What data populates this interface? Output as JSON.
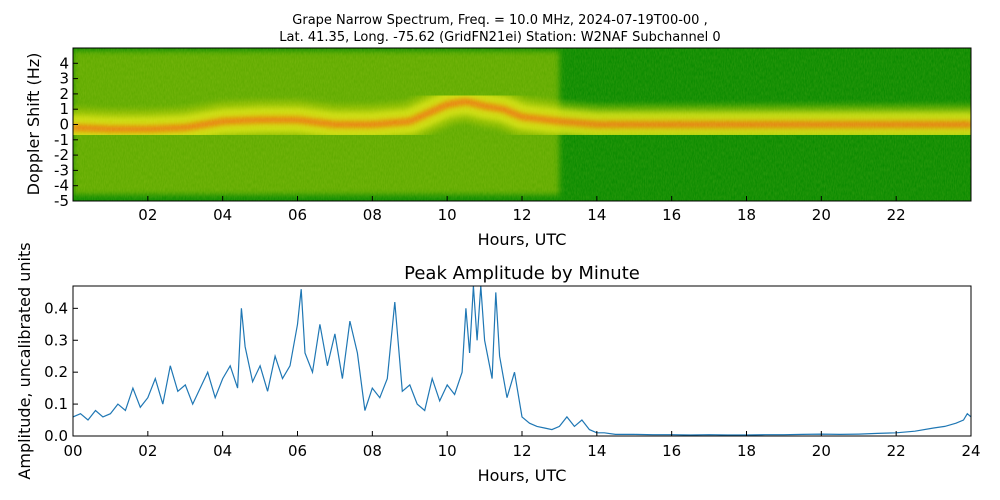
{
  "figure": {
    "title_line1": "Grape Narrow Spectrum, Freq. = 10.0 MHz, 2024-07-19T00-00 ,",
    "title_line2": "Lat.  41.35, Long. -75.62 (GridFN21ei) Station: W2NAF Subchannel 0"
  },
  "chart_data": [
    {
      "type": "heatmap",
      "title": "",
      "xlabel": "Hours, UTC",
      "ylabel": "Doppler Shift (Hz)",
      "xlim": [
        0,
        24
      ],
      "ylim": [
        -5,
        5
      ],
      "x_ticks": [
        2,
        4,
        6,
        8,
        10,
        12,
        14,
        16,
        18,
        20,
        22
      ],
      "x_tick_labels": [
        "02",
        "04",
        "06",
        "08",
        "10",
        "12",
        "14",
        "16",
        "18",
        "20",
        "22"
      ],
      "y_ticks": [
        -5,
        -4,
        -3,
        -2,
        -1,
        0,
        1,
        2,
        3,
        4
      ],
      "y_tick_labels": [
        "-5",
        "-4",
        "-3",
        "-2",
        "-1",
        "0",
        "1",
        "2",
        "3",
        "4"
      ],
      "colors": {
        "background": "#0a8a00",
        "mid": "#c8d400",
        "high": "#e8ee20",
        "peak": "#ff3a10"
      },
      "ridge": {
        "hours": [
          0,
          1,
          2,
          3,
          4,
          5,
          6,
          7,
          8,
          9,
          10,
          10.5,
          11,
          11.5,
          12,
          13,
          14,
          15,
          16,
          17,
          18,
          19,
          20,
          21,
          22,
          23,
          24
        ],
        "doppler_hz": [
          -0.2,
          -0.3,
          -0.3,
          -0.2,
          0.2,
          0.3,
          0.3,
          0.0,
          0.0,
          0.2,
          1.3,
          1.5,
          1.2,
          1.0,
          0.5,
          0.2,
          0.0,
          0.0,
          0.0,
          0.0,
          0.0,
          0.0,
          0.0,
          0.0,
          0.0,
          0.0,
          0.0
        ]
      }
    },
    {
      "type": "line",
      "title": "Peak Amplitude by Minute",
      "xlabel": "Hours, UTC",
      "ylabel": "Amplitude, uncalibrated units",
      "xlim": [
        0,
        24
      ],
      "ylim": [
        0,
        0.47
      ],
      "x_ticks": [
        0,
        2,
        4,
        6,
        8,
        10,
        12,
        14,
        16,
        18,
        20,
        22,
        24
      ],
      "x_tick_labels": [
        "00",
        "02",
        "04",
        "06",
        "08",
        "10",
        "12",
        "14",
        "16",
        "18",
        "20",
        "22",
        "24"
      ],
      "y_ticks": [
        0.0,
        0.1,
        0.2,
        0.3,
        0.4
      ],
      "y_tick_labels": [
        "0.0",
        "0.1",
        "0.2",
        "0.3",
        "0.4"
      ],
      "color": "#1f77b4",
      "x": [
        0.0,
        0.2,
        0.4,
        0.6,
        0.8,
        1.0,
        1.2,
        1.4,
        1.6,
        1.8,
        2.0,
        2.2,
        2.4,
        2.6,
        2.8,
        3.0,
        3.2,
        3.4,
        3.6,
        3.8,
        4.0,
        4.2,
        4.4,
        4.5,
        4.6,
        4.8,
        5.0,
        5.2,
        5.4,
        5.6,
        5.8,
        6.0,
        6.1,
        6.2,
        6.4,
        6.6,
        6.8,
        7.0,
        7.2,
        7.4,
        7.6,
        7.8,
        8.0,
        8.2,
        8.4,
        8.6,
        8.8,
        9.0,
        9.2,
        9.4,
        9.6,
        9.8,
        10.0,
        10.2,
        10.4,
        10.5,
        10.6,
        10.7,
        10.8,
        10.9,
        11.0,
        11.2,
        11.3,
        11.4,
        11.6,
        11.8,
        12.0,
        12.2,
        12.4,
        12.6,
        12.8,
        13.0,
        13.2,
        13.4,
        13.6,
        13.8,
        14.0,
        14.2,
        14.5,
        15.0,
        15.5,
        16.0,
        16.5,
        17.0,
        17.5,
        18.0,
        18.5,
        19.0,
        19.5,
        20.0,
        20.5,
        21.0,
        21.5,
        22.0,
        22.5,
        23.0,
        23.3,
        23.6,
        23.8,
        23.9,
        24.0
      ],
      "y": [
        0.06,
        0.07,
        0.05,
        0.08,
        0.06,
        0.07,
        0.1,
        0.08,
        0.15,
        0.09,
        0.12,
        0.18,
        0.1,
        0.22,
        0.14,
        0.16,
        0.1,
        0.15,
        0.2,
        0.12,
        0.18,
        0.22,
        0.15,
        0.4,
        0.28,
        0.17,
        0.22,
        0.14,
        0.25,
        0.18,
        0.22,
        0.35,
        0.46,
        0.26,
        0.2,
        0.35,
        0.22,
        0.32,
        0.18,
        0.36,
        0.26,
        0.08,
        0.15,
        0.12,
        0.18,
        0.42,
        0.14,
        0.16,
        0.1,
        0.08,
        0.18,
        0.11,
        0.16,
        0.13,
        0.2,
        0.4,
        0.26,
        0.47,
        0.3,
        0.47,
        0.3,
        0.18,
        0.45,
        0.25,
        0.12,
        0.2,
        0.06,
        0.04,
        0.03,
        0.025,
        0.02,
        0.03,
        0.06,
        0.03,
        0.05,
        0.02,
        0.01,
        0.01,
        0.005,
        0.005,
        0.004,
        0.004,
        0.003,
        0.004,
        0.003,
        0.003,
        0.004,
        0.004,
        0.005,
        0.006,
        0.005,
        0.006,
        0.008,
        0.01,
        0.015,
        0.025,
        0.03,
        0.04,
        0.05,
        0.07,
        0.06
      ]
    }
  ]
}
